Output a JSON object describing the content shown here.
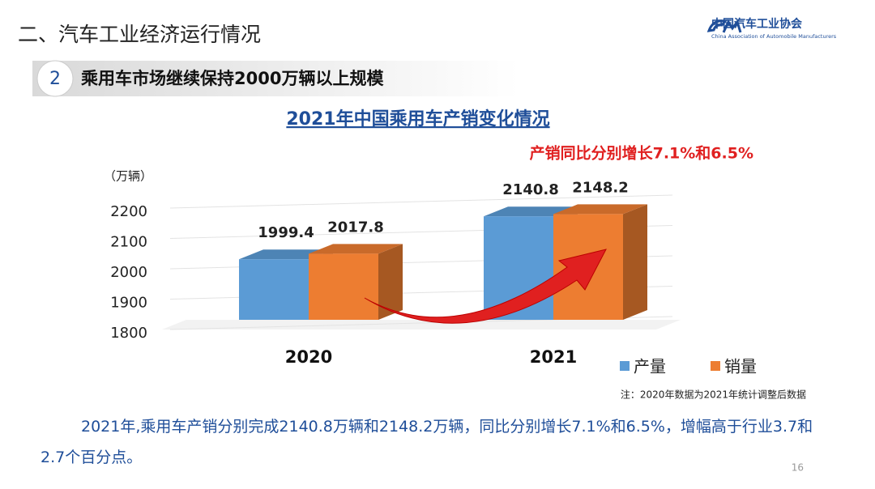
{
  "header": {
    "section": "二、汽车工业经济运行情况",
    "logo_cn": "中国汽车工业协会",
    "logo_en": "China Association of Automobile Manufacturers",
    "badge_number": "2",
    "subtitle": "乘用车市场继续保持2000万辆以上规模"
  },
  "chart_data": {
    "type": "bar",
    "title": "2021年中国乘用车产销变化情况",
    "y_label": "（万辆）",
    "categories": [
      "2020",
      "2021"
    ],
    "series": [
      {
        "name": "产量",
        "color": "#5b9bd5",
        "values": [
          1999.4,
          2140.8
        ]
      },
      {
        "name": "销量",
        "color": "#ed7d31",
        "values": [
          2017.8,
          2148.2
        ]
      }
    ],
    "ylim": [
      1800,
      2200
    ],
    "yticks": [
      1800,
      1900,
      2000,
      2100,
      2200
    ],
    "grid": true,
    "legend": "bottom-right",
    "annotation": "产销同比分别增长7.1%和6.5%",
    "note": "注：2020年数据为2021年统计调整后数据"
  },
  "body": {
    "text": "2021年,乘用车产销分别完成2140.8万辆和2148.2万辆，同比分别增长7.1%和6.5%，增幅高于行业3.7和2.7个百分点。"
  },
  "page_number": "16"
}
